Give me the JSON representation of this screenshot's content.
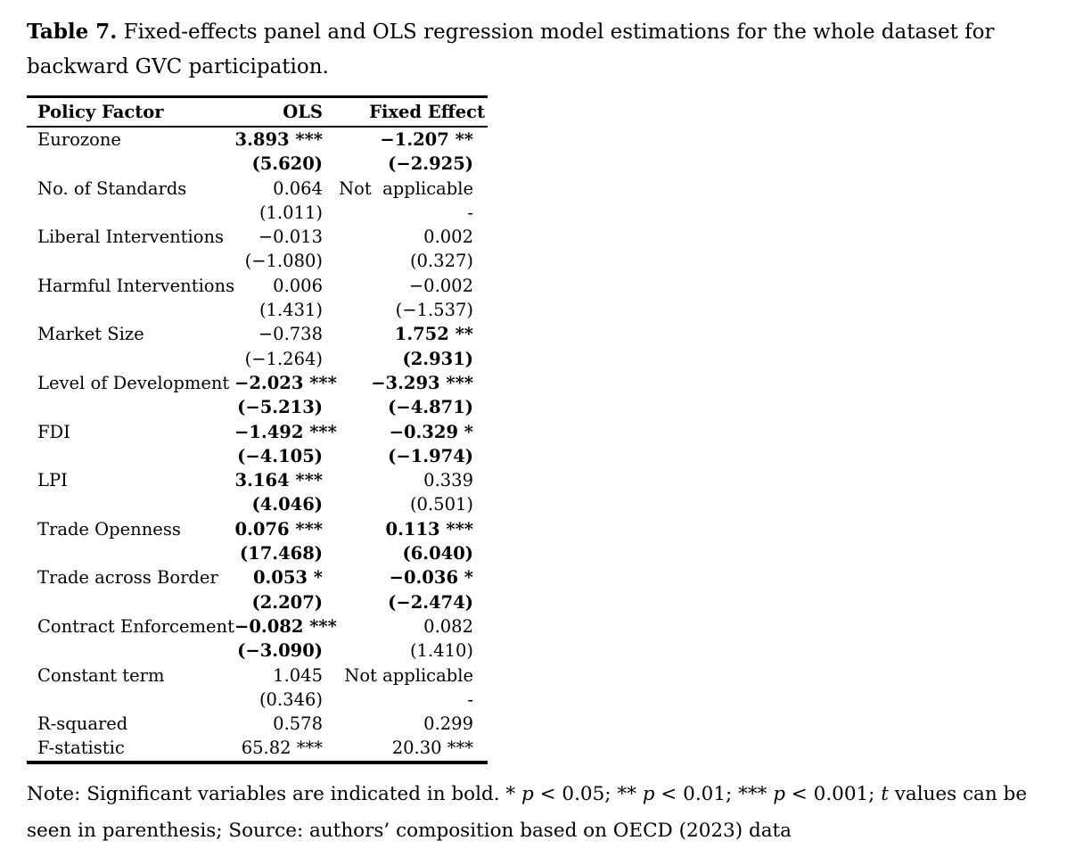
{
  "title": {
    "label": "Table 7.",
    "text": "Fixed-effects panel and OLS regression model estimations for the whole dataset for backward GVC participation."
  },
  "table": {
    "headers": {
      "factor": "Policy Factor",
      "ols": "OLS",
      "fe": "Fixed Effect"
    },
    "rows": [
      {
        "factor": "Eurozone",
        "ols": "3.893 ***",
        "ols_bold": true,
        "fe": "−1.207 **",
        "fe_bold": true
      },
      {
        "factor": "",
        "ols": "(5.620)",
        "ols_bold": true,
        "fe": "(−2.925)",
        "fe_bold": true
      },
      {
        "factor": "No. of Standards",
        "ols": "0.064",
        "ols_bold": false,
        "fe": "Not  applicable",
        "fe_bold": false
      },
      {
        "factor": "",
        "ols": "(1.011)",
        "ols_bold": false,
        "fe": "-",
        "fe_bold": false
      },
      {
        "factor": "Liberal Interventions",
        "ols": "−0.013",
        "ols_bold": false,
        "fe": "0.002",
        "fe_bold": false
      },
      {
        "factor": "",
        "ols": "(−1.080)",
        "ols_bold": false,
        "fe": "(0.327)",
        "fe_bold": false
      },
      {
        "factor": "Harmful Interventions",
        "ols": "0.006",
        "ols_bold": false,
        "fe": "−0.002",
        "fe_bold": false
      },
      {
        "factor": "",
        "ols": "(1.431)",
        "ols_bold": false,
        "fe": "(−1.537)",
        "fe_bold": false
      },
      {
        "factor": "Market Size",
        "ols": "−0.738",
        "ols_bold": false,
        "fe": "1.752 **",
        "fe_bold": true
      },
      {
        "factor": "",
        "ols": "(−1.264)",
        "ols_bold": false,
        "fe": "(2.931)",
        "fe_bold": true
      },
      {
        "factor": "Level of Development",
        "ols": "−2.023 ***",
        "ols_bold": true,
        "fe": "−3.293 ***",
        "fe_bold": true
      },
      {
        "factor": "",
        "ols": "(−5.213)",
        "ols_bold": true,
        "fe": "(−4.871)",
        "fe_bold": true
      },
      {
        "factor": "FDI",
        "ols": "−1.492 ***",
        "ols_bold": true,
        "fe": "−0.329 *",
        "fe_bold": true
      },
      {
        "factor": "",
        "ols": "(−4.105)",
        "ols_bold": true,
        "fe": "(−1.974)",
        "fe_bold": true
      },
      {
        "factor": "LPI",
        "ols": "3.164 ***",
        "ols_bold": true,
        "fe": "0.339",
        "fe_bold": false
      },
      {
        "factor": "",
        "ols": "(4.046)",
        "ols_bold": true,
        "fe": "(0.501)",
        "fe_bold": false
      },
      {
        "factor": "Trade Openness",
        "ols": "0.076 ***",
        "ols_bold": true,
        "fe": "0.113 ***",
        "fe_bold": true
      },
      {
        "factor": "",
        "ols": "(17.468)",
        "ols_bold": true,
        "fe": "(6.040)",
        "fe_bold": true
      },
      {
        "factor": "Trade across Border",
        "ols": "0.053 *",
        "ols_bold": true,
        "fe": "−0.036 *",
        "fe_bold": true
      },
      {
        "factor": "",
        "ols": "(2.207)",
        "ols_bold": true,
        "fe": "(−2.474)",
        "fe_bold": true
      },
      {
        "factor": "Contract Enforcement",
        "ols": "−0.082 ***",
        "ols_bold": true,
        "fe": "0.082",
        "fe_bold": false
      },
      {
        "factor": "",
        "ols": "(−3.090)",
        "ols_bold": true,
        "fe": "(1.410)",
        "fe_bold": false
      },
      {
        "factor": "Constant term",
        "ols": "1.045",
        "ols_bold": false,
        "fe": "Not applicable",
        "fe_bold": false
      },
      {
        "factor": "",
        "ols": "(0.346)",
        "ols_bold": false,
        "fe": "-",
        "fe_bold": false
      },
      {
        "factor": "R-squared",
        "ols": "0.578",
        "ols_bold": false,
        "fe": "0.299",
        "fe_bold": false
      },
      {
        "factor": "F-statistic",
        "ols": "65.82 ***",
        "ols_bold": false,
        "fe": "20.30 ***",
        "fe_bold": false
      }
    ]
  },
  "note": {
    "segments": [
      {
        "text": "Note: Significant variables are indicated in bold. * ",
        "italic": false
      },
      {
        "text": "p",
        "italic": true
      },
      {
        "text": " < 0.05; ** ",
        "italic": false
      },
      {
        "text": "p",
        "italic": true
      },
      {
        "text": " < 0.01; *** ",
        "italic": false
      },
      {
        "text": "p",
        "italic": true
      },
      {
        "text": " < 0.001; ",
        "italic": false
      },
      {
        "text": "t",
        "italic": true
      },
      {
        "text": " values can be seen in parenthesis; Source: authors’ composition based on OECD (2023) data",
        "italic": false
      }
    ]
  }
}
